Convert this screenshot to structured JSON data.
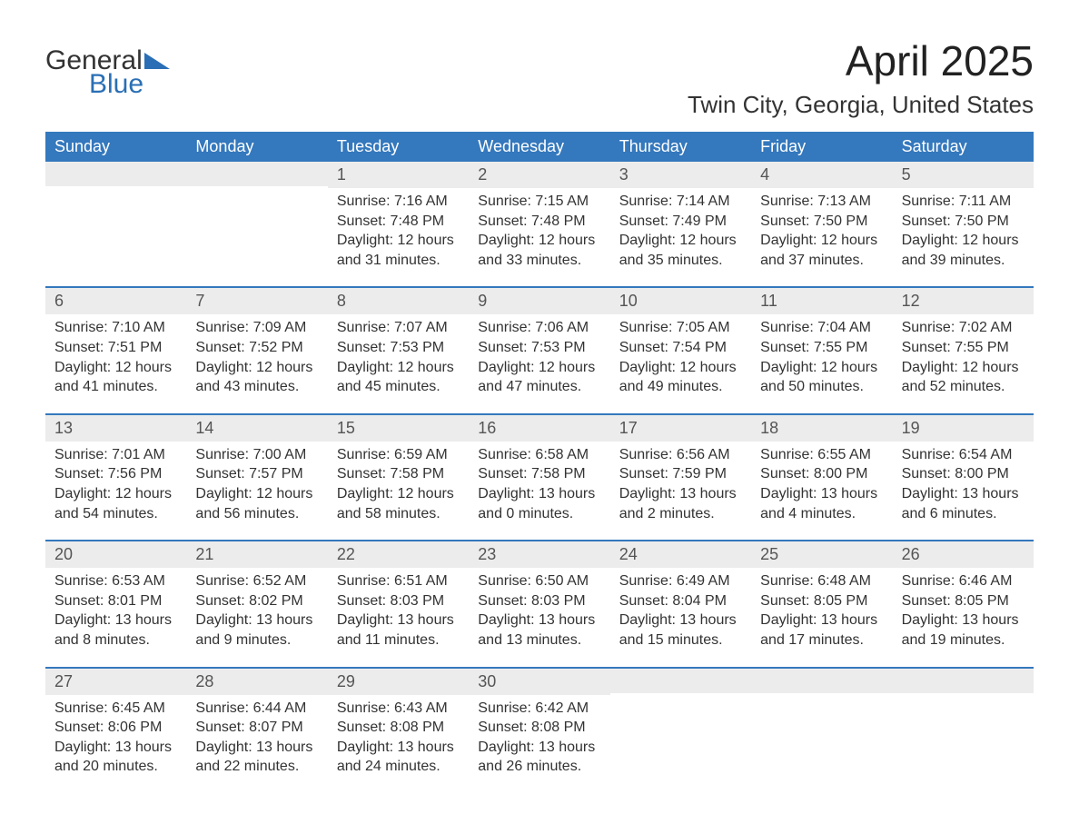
{
  "logo": {
    "text_general": "General",
    "text_blue": "Blue",
    "general_color": "#333333",
    "blue_color": "#2a6fb5"
  },
  "title": "April 2025",
  "location": "Twin City, Georgia, United States",
  "colors": {
    "header_bg": "#3478bd",
    "header_fg": "#ffffff",
    "daynum_bg": "#ececec",
    "text": "#333333",
    "rule": "#3478bd"
  },
  "font": {
    "family": "Arial",
    "title_size_pt": 34,
    "location_size_pt": 20,
    "header_size_pt": 14,
    "body_size_pt": 12
  },
  "day_labels": [
    "Sunday",
    "Monday",
    "Tuesday",
    "Wednesday",
    "Thursday",
    "Friday",
    "Saturday"
  ],
  "weeks": [
    [
      {
        "day": "",
        "sunrise": "",
        "sunset": "",
        "daylight": ""
      },
      {
        "day": "",
        "sunrise": "",
        "sunset": "",
        "daylight": ""
      },
      {
        "day": "1",
        "sunrise": "Sunrise: 7:16 AM",
        "sunset": "Sunset: 7:48 PM",
        "daylight": "Daylight: 12 hours and 31 minutes."
      },
      {
        "day": "2",
        "sunrise": "Sunrise: 7:15 AM",
        "sunset": "Sunset: 7:48 PM",
        "daylight": "Daylight: 12 hours and 33 minutes."
      },
      {
        "day": "3",
        "sunrise": "Sunrise: 7:14 AM",
        "sunset": "Sunset: 7:49 PM",
        "daylight": "Daylight: 12 hours and 35 minutes."
      },
      {
        "day": "4",
        "sunrise": "Sunrise: 7:13 AM",
        "sunset": "Sunset: 7:50 PM",
        "daylight": "Daylight: 12 hours and 37 minutes."
      },
      {
        "day": "5",
        "sunrise": "Sunrise: 7:11 AM",
        "sunset": "Sunset: 7:50 PM",
        "daylight": "Daylight: 12 hours and 39 minutes."
      }
    ],
    [
      {
        "day": "6",
        "sunrise": "Sunrise: 7:10 AM",
        "sunset": "Sunset: 7:51 PM",
        "daylight": "Daylight: 12 hours and 41 minutes."
      },
      {
        "day": "7",
        "sunrise": "Sunrise: 7:09 AM",
        "sunset": "Sunset: 7:52 PM",
        "daylight": "Daylight: 12 hours and 43 minutes."
      },
      {
        "day": "8",
        "sunrise": "Sunrise: 7:07 AM",
        "sunset": "Sunset: 7:53 PM",
        "daylight": "Daylight: 12 hours and 45 minutes."
      },
      {
        "day": "9",
        "sunrise": "Sunrise: 7:06 AM",
        "sunset": "Sunset: 7:53 PM",
        "daylight": "Daylight: 12 hours and 47 minutes."
      },
      {
        "day": "10",
        "sunrise": "Sunrise: 7:05 AM",
        "sunset": "Sunset: 7:54 PM",
        "daylight": "Daylight: 12 hours and 49 minutes."
      },
      {
        "day": "11",
        "sunrise": "Sunrise: 7:04 AM",
        "sunset": "Sunset: 7:55 PM",
        "daylight": "Daylight: 12 hours and 50 minutes."
      },
      {
        "day": "12",
        "sunrise": "Sunrise: 7:02 AM",
        "sunset": "Sunset: 7:55 PM",
        "daylight": "Daylight: 12 hours and 52 minutes."
      }
    ],
    [
      {
        "day": "13",
        "sunrise": "Sunrise: 7:01 AM",
        "sunset": "Sunset: 7:56 PM",
        "daylight": "Daylight: 12 hours and 54 minutes."
      },
      {
        "day": "14",
        "sunrise": "Sunrise: 7:00 AM",
        "sunset": "Sunset: 7:57 PM",
        "daylight": "Daylight: 12 hours and 56 minutes."
      },
      {
        "day": "15",
        "sunrise": "Sunrise: 6:59 AM",
        "sunset": "Sunset: 7:58 PM",
        "daylight": "Daylight: 12 hours and 58 minutes."
      },
      {
        "day": "16",
        "sunrise": "Sunrise: 6:58 AM",
        "sunset": "Sunset: 7:58 PM",
        "daylight": "Daylight: 13 hours and 0 minutes."
      },
      {
        "day": "17",
        "sunrise": "Sunrise: 6:56 AM",
        "sunset": "Sunset: 7:59 PM",
        "daylight": "Daylight: 13 hours and 2 minutes."
      },
      {
        "day": "18",
        "sunrise": "Sunrise: 6:55 AM",
        "sunset": "Sunset: 8:00 PM",
        "daylight": "Daylight: 13 hours and 4 minutes."
      },
      {
        "day": "19",
        "sunrise": "Sunrise: 6:54 AM",
        "sunset": "Sunset: 8:00 PM",
        "daylight": "Daylight: 13 hours and 6 minutes."
      }
    ],
    [
      {
        "day": "20",
        "sunrise": "Sunrise: 6:53 AM",
        "sunset": "Sunset: 8:01 PM",
        "daylight": "Daylight: 13 hours and 8 minutes."
      },
      {
        "day": "21",
        "sunrise": "Sunrise: 6:52 AM",
        "sunset": "Sunset: 8:02 PM",
        "daylight": "Daylight: 13 hours and 9 minutes."
      },
      {
        "day": "22",
        "sunrise": "Sunrise: 6:51 AM",
        "sunset": "Sunset: 8:03 PM",
        "daylight": "Daylight: 13 hours and 11 minutes."
      },
      {
        "day": "23",
        "sunrise": "Sunrise: 6:50 AM",
        "sunset": "Sunset: 8:03 PM",
        "daylight": "Daylight: 13 hours and 13 minutes."
      },
      {
        "day": "24",
        "sunrise": "Sunrise: 6:49 AM",
        "sunset": "Sunset: 8:04 PM",
        "daylight": "Daylight: 13 hours and 15 minutes."
      },
      {
        "day": "25",
        "sunrise": "Sunrise: 6:48 AM",
        "sunset": "Sunset: 8:05 PM",
        "daylight": "Daylight: 13 hours and 17 minutes."
      },
      {
        "day": "26",
        "sunrise": "Sunrise: 6:46 AM",
        "sunset": "Sunset: 8:05 PM",
        "daylight": "Daylight: 13 hours and 19 minutes."
      }
    ],
    [
      {
        "day": "27",
        "sunrise": "Sunrise: 6:45 AM",
        "sunset": "Sunset: 8:06 PM",
        "daylight": "Daylight: 13 hours and 20 minutes."
      },
      {
        "day": "28",
        "sunrise": "Sunrise: 6:44 AM",
        "sunset": "Sunset: 8:07 PM",
        "daylight": "Daylight: 13 hours and 22 minutes."
      },
      {
        "day": "29",
        "sunrise": "Sunrise: 6:43 AM",
        "sunset": "Sunset: 8:08 PM",
        "daylight": "Daylight: 13 hours and 24 minutes."
      },
      {
        "day": "30",
        "sunrise": "Sunrise: 6:42 AM",
        "sunset": "Sunset: 8:08 PM",
        "daylight": "Daylight: 13 hours and 26 minutes."
      },
      {
        "day": "",
        "sunrise": "",
        "sunset": "",
        "daylight": ""
      },
      {
        "day": "",
        "sunrise": "",
        "sunset": "",
        "daylight": ""
      },
      {
        "day": "",
        "sunrise": "",
        "sunset": "",
        "daylight": ""
      }
    ]
  ]
}
